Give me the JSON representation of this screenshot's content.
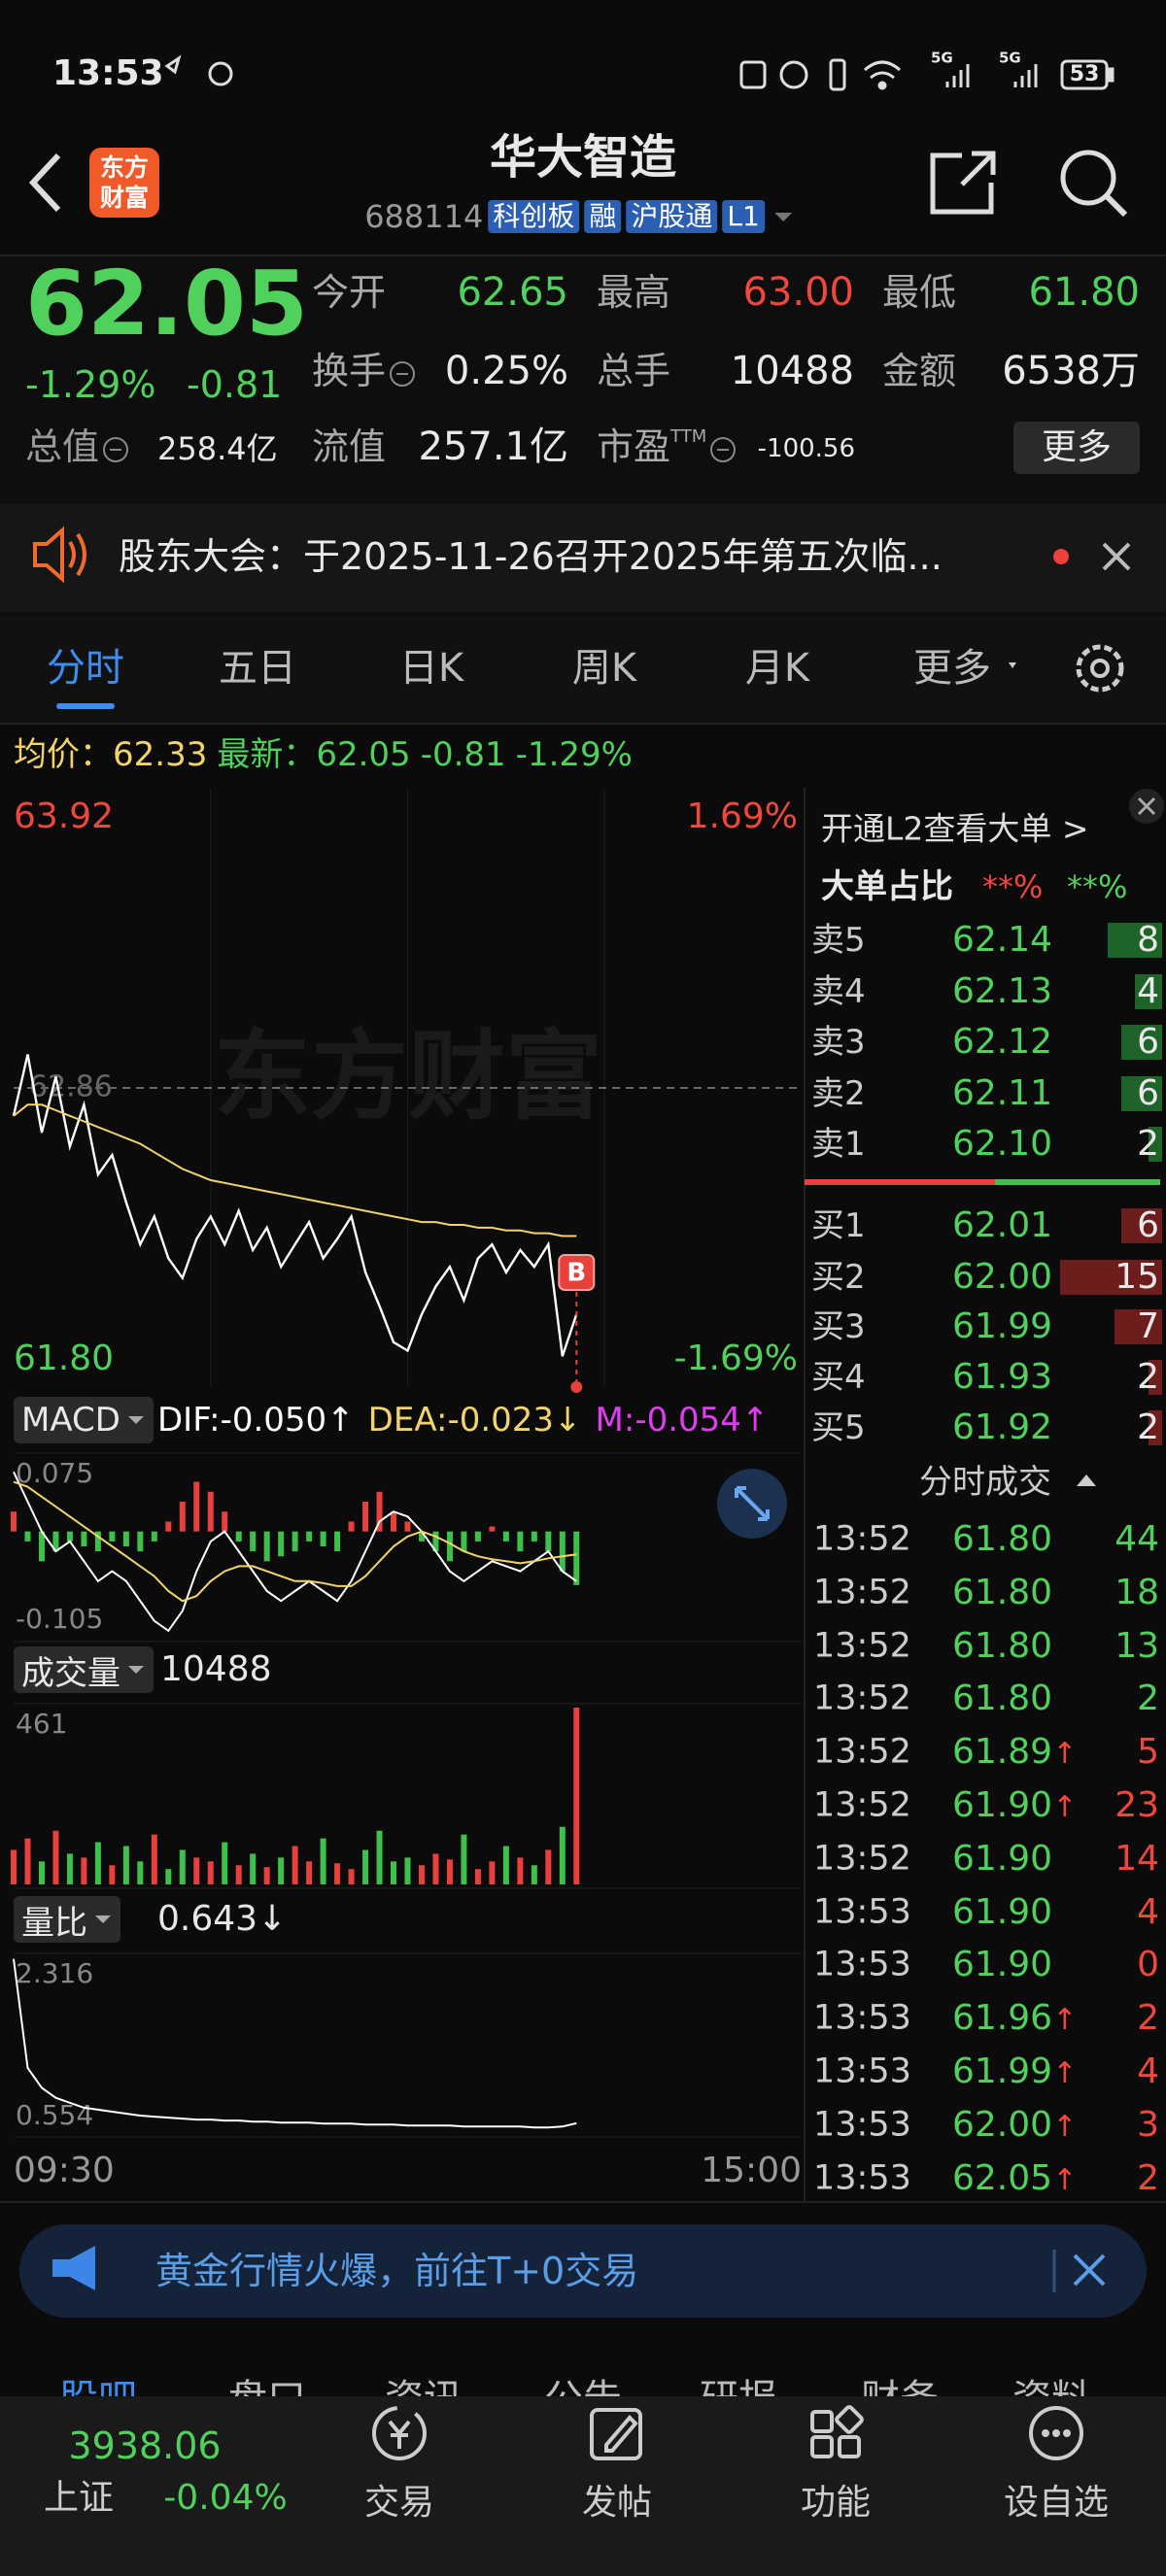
{
  "status_bar": {
    "time": "13:53",
    "network": [
      "5G",
      "5G"
    ],
    "battery": "53"
  },
  "header": {
    "logo": "东方财富",
    "title": "华大智造",
    "code": "688114",
    "tags": [
      "科创板",
      "融",
      "沪股通",
      "L1"
    ]
  },
  "quote": {
    "price": "62.05",
    "change_pct": "-1.29%",
    "change": "-0.81",
    "grid": [
      {
        "label": "今开",
        "value": "62.65",
        "tone": "down"
      },
      {
        "label": "最高",
        "value": "63.00",
        "tone": "up"
      },
      {
        "label": "最低",
        "value": "61.80",
        "tone": "down"
      },
      {
        "label": "换手",
        "value": "0.25%",
        "info": true
      },
      {
        "label": "总手",
        "value": "10488"
      },
      {
        "label": "金额",
        "value": "6538万"
      },
      {
        "label": "流值",
        "value": "257.1亿"
      },
      {
        "label": "市盈",
        "sup": "TTM",
        "value": "-100.56",
        "info": true
      }
    ],
    "cap": {
      "label": "总值",
      "value": "258.4亿"
    },
    "more": "更多"
  },
  "notice": {
    "text": "股东大会：于2025-11-26召开2025年第五次临..."
  },
  "tabs": [
    "分时",
    "五日",
    "日K",
    "周K",
    "月K",
    "更多"
  ],
  "chart_data": {
    "type": "line",
    "watermark": "东方财富",
    "signal": "B",
    "info": {
      "avg_label": "均价：",
      "avg": "62.33",
      "latest_label": "最新：",
      "latest": "62.05",
      "change": "-0.81",
      "change_pct": "-1.29%"
    },
    "categories": [
      "09:30",
      null,
      null,
      null,
      null,
      null,
      null,
      null,
      null,
      null,
      null,
      null,
      null,
      null,
      null,
      null,
      null,
      null,
      null,
      null,
      null,
      null,
      null,
      null,
      null,
      null,
      null,
      null,
      null,
      null,
      null,
      null,
      null,
      null,
      null,
      null,
      null,
      null,
      null,
      null,
      null,
      null,
      null,
      null,
      null,
      null,
      null,
      null,
      null,
      null,
      null,
      null,
      null,
      null,
      null,
      null,
      "15:00"
    ],
    "ylim": [
      61.8,
      63.92
    ],
    "yticks": [
      63.92,
      62.86,
      {
        "value": 61.8,
        "label": "61.80"
      }
    ],
    "y2lim": [
      -1.69,
      1.69
    ],
    "y2ticks": [
      {
        "value": 1.69,
        "label": "1.69%"
      },
      {
        "value": -1.69,
        "label": "-1.69%"
      }
    ],
    "series": [
      {
        "color": "#ffffff",
        "values": [
          62.76,
          62.98,
          62.7,
          62.9,
          62.65,
          62.8,
          62.55,
          62.62,
          62.45,
          62.3,
          62.4,
          62.25,
          62.18,
          62.32,
          62.4,
          62.3,
          62.42,
          62.28,
          62.36,
          62.22,
          62.3,
          62.38,
          62.25,
          62.32,
          62.4,
          62.2,
          62.08,
          61.95,
          61.92,
          62.05,
          62.15,
          62.22,
          62.1,
          62.25,
          62.3,
          62.2,
          62.28,
          62.22,
          62.3,
          61.9,
          62.05,
          null,
          null,
          null,
          null,
          null,
          null,
          null,
          null,
          null,
          null,
          null,
          null,
          null,
          null,
          null,
          null
        ]
      },
      {
        "color": "#f2d46a",
        "values": [
          62.76,
          62.8,
          62.8,
          62.78,
          62.76,
          62.74,
          62.72,
          62.7,
          62.68,
          62.66,
          62.63,
          62.6,
          62.57,
          62.55,
          62.53,
          62.52,
          62.51,
          62.5,
          62.49,
          62.48,
          62.47,
          62.46,
          62.45,
          62.44,
          62.43,
          62.42,
          62.41,
          62.4,
          62.39,
          62.38,
          62.38,
          62.37,
          62.37,
          62.36,
          62.36,
          62.35,
          62.35,
          62.34,
          62.34,
          62.33,
          62.33,
          null,
          null,
          null,
          null,
          null,
          null,
          null,
          null,
          null,
          null,
          null,
          null,
          null,
          null,
          null,
          null
        ]
      }
    ],
    "macd": {
      "label": "MACD",
      "legend": [
        "DIF:-0.050↑",
        "DEA:-0.023↓",
        "M:-0.054↑"
      ],
      "legend_colors": [
        "#ffffff",
        "#f2d46a",
        "#e03df0"
      ],
      "ylim": [
        -0.105,
        0.075
      ],
      "yticks": [
        0.075,
        -0.105
      ],
      "up_color": "#e8403a",
      "down_color": "#3fc04a",
      "bars": [
        0.02,
        -0.01,
        -0.03,
        -0.02,
        -0.01,
        -0.015,
        -0.02,
        -0.01,
        -0.015,
        -0.02,
        -0.01,
        0.01,
        0.03,
        0.05,
        0.04,
        0.02,
        -0.01,
        -0.02,
        -0.03,
        -0.025,
        -0.02,
        -0.01,
        -0.015,
        -0.02,
        0.01,
        0.03,
        0.04,
        0.02,
        0.01,
        -0.01,
        -0.02,
        -0.03,
        -0.02,
        -0.01,
        0.005,
        -0.01,
        -0.02,
        -0.01,
        -0.02,
        -0.04,
        -0.054,
        null,
        null,
        null,
        null,
        null,
        null,
        null,
        null,
        null,
        null,
        null,
        null,
        null,
        null,
        null,
        null
      ],
      "series": [
        {
          "color": "#ffffff",
          "values": [
            0.06,
            0.03,
            0,
            -0.02,
            -0.01,
            -0.03,
            -0.05,
            -0.04,
            -0.05,
            -0.07,
            -0.09,
            -0.1,
            -0.08,
            -0.04,
            -0.01,
            0,
            -0.02,
            -0.04,
            -0.06,
            -0.07,
            -0.06,
            -0.05,
            -0.06,
            -0.07,
            -0.05,
            -0.02,
            0.01,
            0.02,
            0.015,
            0,
            -0.02,
            -0.04,
            -0.05,
            -0.04,
            -0.03,
            -0.035,
            -0.04,
            -0.03,
            -0.02,
            -0.04,
            -0.05,
            null,
            null,
            null,
            null,
            null,
            null,
            null,
            null,
            null,
            null,
            null,
            null,
            null,
            null,
            null,
            null
          ]
        },
        {
          "color": "#f2d46a",
          "values": [
            0.05,
            0.045,
            0.035,
            0.025,
            0.015,
            0.005,
            -0.005,
            -0.015,
            -0.025,
            -0.035,
            -0.045,
            -0.06,
            -0.07,
            -0.065,
            -0.05,
            -0.04,
            -0.035,
            -0.035,
            -0.04,
            -0.045,
            -0.05,
            -0.05,
            -0.052,
            -0.055,
            -0.055,
            -0.045,
            -0.03,
            -0.015,
            -0.005,
            0,
            -0.005,
            -0.012,
            -0.02,
            -0.025,
            -0.028,
            -0.03,
            -0.032,
            -0.03,
            -0.027,
            -0.025,
            -0.023,
            null,
            null,
            null,
            null,
            null,
            null,
            null,
            null,
            null,
            null,
            null,
            null,
            null,
            null,
            null,
            null
          ]
        }
      ]
    },
    "volume": {
      "label": "成交量",
      "value": "10488",
      "ylim": [
        0,
        461
      ],
      "yticks": [
        461
      ],
      "up_color": "#e8403a",
      "down_color": "#3fc04a",
      "values": [
        90,
        120,
        60,
        140,
        80,
        70,
        110,
        50,
        100,
        60,
        130,
        40,
        90,
        70,
        60,
        110,
        50,
        80,
        45,
        70,
        100,
        60,
        120,
        55,
        40,
        90,
        140,
        60,
        70,
        50,
        80,
        65,
        130,
        40,
        60,
        100,
        70,
        50,
        90,
        150,
        461,
        null,
        null,
        null,
        null,
        null,
        null,
        null,
        null,
        null,
        null,
        null,
        null,
        null,
        null,
        null,
        null
      ]
    },
    "ratio": {
      "label": "量比",
      "value": "0.643↓",
      "ylim": [
        0.554,
        2.316
      ],
      "yticks": [
        2.316,
        0.554
      ],
      "color": "#ffffff",
      "values": [
        2.3,
        1.2,
        1.0,
        0.9,
        0.85,
        0.8,
        0.78,
        0.76,
        0.74,
        0.72,
        0.71,
        0.7,
        0.69,
        0.68,
        0.68,
        0.67,
        0.67,
        0.66,
        0.66,
        0.65,
        0.65,
        0.65,
        0.64,
        0.64,
        0.64,
        0.63,
        0.63,
        0.63,
        0.62,
        0.62,
        0.62,
        0.62,
        0.61,
        0.61,
        0.61,
        0.61,
        0.61,
        0.6,
        0.6,
        0.61,
        0.643,
        null,
        null,
        null,
        null,
        null,
        null,
        null,
        null,
        null,
        null,
        null,
        null,
        null,
        null,
        null,
        null
      ]
    }
  },
  "panel": {
    "l2": "开通L2查看大单 >",
    "big_label": "大单占比",
    "big_sell": "**%",
    "big_buy": "**%",
    "sell": [
      {
        "label": "卖5",
        "price": "62.14",
        "volume": 8
      },
      {
        "label": "卖4",
        "price": "62.13",
        "volume": 4
      },
      {
        "label": "卖3",
        "price": "62.12",
        "volume": 6
      },
      {
        "label": "卖2",
        "price": "62.11",
        "volume": 6
      },
      {
        "label": "卖1",
        "price": "62.10",
        "volume": 2
      }
    ],
    "buy": [
      {
        "label": "买1",
        "price": "62.01",
        "volume": 6
      },
      {
        "label": "买2",
        "price": "62.00",
        "volume": 15
      },
      {
        "label": "买3",
        "price": "61.99",
        "volume": 7
      },
      {
        "label": "买4",
        "price": "61.93",
        "volume": 2
      },
      {
        "label": "买5",
        "price": "61.92",
        "volume": 2
      }
    ],
    "trades_title": "分时成交",
    "trades": [
      {
        "time": "13:52",
        "price": "61.80",
        "volume": 44,
        "side": "sell"
      },
      {
        "time": "13:52",
        "price": "61.80",
        "volume": 18,
        "side": "sell"
      },
      {
        "time": "13:52",
        "price": "61.80",
        "volume": 13,
        "side": "sell"
      },
      {
        "time": "13:52",
        "price": "61.80",
        "volume": 2,
        "side": "sell"
      },
      {
        "time": "13:52",
        "price": "61.89",
        "arrow": "↑",
        "volume": 5,
        "side": "buy"
      },
      {
        "time": "13:52",
        "price": "61.90",
        "arrow": "↑",
        "volume": 23,
        "side": "buy"
      },
      {
        "time": "13:52",
        "price": "61.90",
        "volume": 14,
        "side": "buy"
      },
      {
        "time": "13:53",
        "price": "61.90",
        "volume": 4,
        "side": "buy"
      },
      {
        "time": "13:53",
        "price": "61.90",
        "volume": 0,
        "side": "buy"
      },
      {
        "time": "13:53",
        "price": "61.96",
        "arrow": "↑",
        "volume": 2,
        "side": "buy"
      },
      {
        "time": "13:53",
        "price": "61.99",
        "arrow": "↑",
        "volume": 4,
        "side": "buy"
      },
      {
        "time": "13:53",
        "price": "62.00",
        "arrow": "↑",
        "volume": 3,
        "side": "buy"
      },
      {
        "time": "13:53",
        "price": "62.05",
        "arrow": "↑",
        "volume": 2,
        "side": "buy"
      }
    ]
  },
  "banner": {
    "text": "黄金行情火爆，前往T+0交易"
  },
  "sub_tabs": [
    "股吧",
    "盘口",
    "资讯",
    "公告",
    "研报",
    "财务",
    "资料"
  ],
  "nav": {
    "index_value": "3938.06",
    "index_name": "上证",
    "index_change": "-0.04%",
    "items": [
      "交易",
      "发帖",
      "功能",
      "设自选"
    ]
  }
}
